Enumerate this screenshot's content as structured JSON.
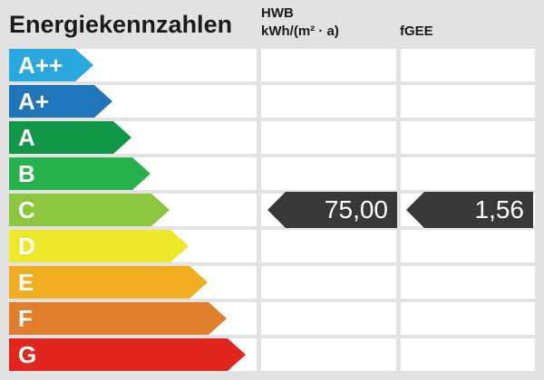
{
  "title": "Energiekennzahlen",
  "columns": {
    "hwb": {
      "label": "HWB",
      "unit": "kWh/(m² · a)"
    },
    "fgee": {
      "label": "fGEE"
    }
  },
  "scale": {
    "rows": [
      {
        "label": "A++",
        "color": "#29A8E0"
      },
      {
        "label": "A+",
        "color": "#1E75B9"
      },
      {
        "label": "A",
        "color": "#0F9747"
      },
      {
        "label": "B",
        "color": "#27B24E"
      },
      {
        "label": "C",
        "color": "#8CC63F"
      },
      {
        "label": "D",
        "color": "#EEE82A"
      },
      {
        "label": "E",
        "color": "#EFAD1F"
      },
      {
        "label": "F",
        "color": "#E07E2C"
      },
      {
        "label": "G",
        "color": "#E0261F"
      }
    ]
  },
  "values": {
    "rating": "C",
    "hwb": "75,00",
    "fgee": "1,56"
  },
  "colors": {
    "background": "#E2E2E2",
    "row_background": "#FFFFFF",
    "value_arrow": "#383838",
    "value_text": "#FFFFFF",
    "scale_text": "#FFFFFF",
    "heading_text": "#1A1A1A"
  },
  "chart_data": {
    "type": "bar",
    "subtype": "energy-rating-scale",
    "title": "Energiekennzahlen",
    "categories": [
      "A++",
      "A+",
      "A",
      "B",
      "C",
      "D",
      "E",
      "F",
      "G"
    ],
    "category_colors": [
      "#29A8E0",
      "#1E75B9",
      "#0F9747",
      "#27B24E",
      "#8CC63F",
      "#EEE82A",
      "#EFAD1F",
      "#E07E2C",
      "#E0261F"
    ],
    "series": [
      {
        "name": "HWB",
        "unit": "kWh/(m² · a)",
        "value": 75.0,
        "value_label": "75,00",
        "rating": "C"
      },
      {
        "name": "fGEE",
        "unit": "",
        "value": 1.56,
        "value_label": "1,56",
        "rating": "C"
      }
    ],
    "layout": {
      "orientation": "horizontal",
      "bar_length_increases_with_worse_rating": true,
      "value_markers_point_left_at_rating_row": true
    }
  }
}
